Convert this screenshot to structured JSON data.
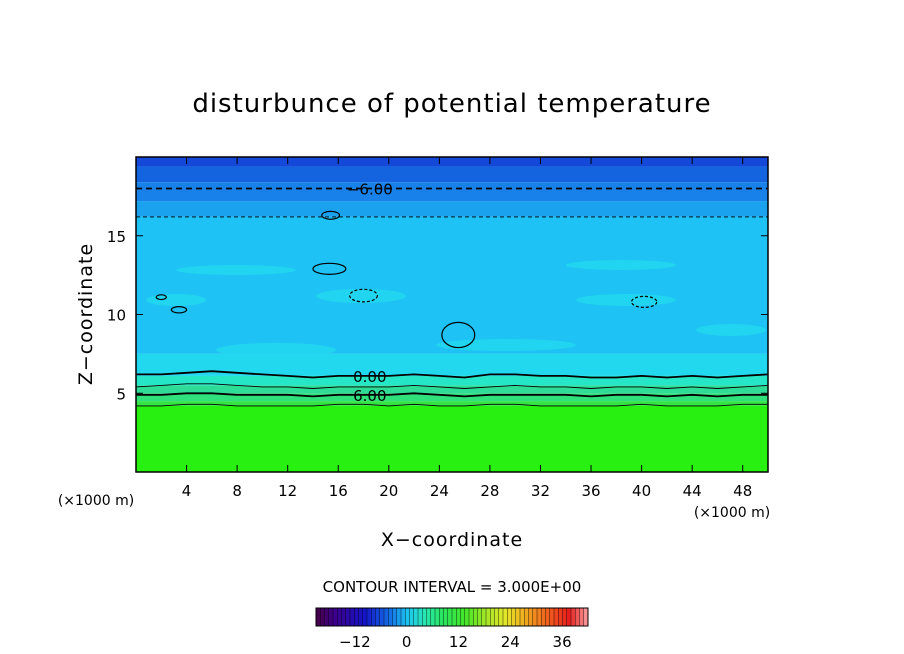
{
  "chart_data": {
    "type": "heatmap",
    "title": "disturbunce of potential temperature",
    "xlabel": "X−coordinate",
    "ylabel": "Z−coordinate",
    "x_unit": "(×1000 m)",
    "y_unit": "(×1000 m)",
    "xlim": [
      0,
      50
    ],
    "ylim": [
      0,
      20
    ],
    "x_ticks": [
      4,
      8,
      12,
      16,
      20,
      24,
      28,
      32,
      36,
      40,
      44,
      48
    ],
    "y_ticks": [
      5,
      10,
      15
    ],
    "contour_interval_label": "CONTOUR INTERVAL = 3.000E+00",
    "colorbar": {
      "range": [
        -21,
        42
      ],
      "ticks": [
        -12,
        0,
        12,
        24,
        36
      ],
      "tick_labels": [
        "−12",
        "0",
        "12",
        "24",
        "36"
      ]
    },
    "bands": [
      {
        "z0": 0,
        "z1": 4.2,
        "value": 10.5,
        "color": "#28f010"
      },
      {
        "z0": 4.2,
        "z1": 4.5,
        "value": 7.5,
        "color": "#34e444"
      },
      {
        "z0": 4.5,
        "z1": 5.0,
        "value": 4.5,
        "color": "#30e07a"
      },
      {
        "z0": 5.0,
        "z1": 5.5,
        "value": 3.5,
        "color": "#2edc98"
      },
      {
        "z0": 5.5,
        "z1": 6.1,
        "value": 1.5,
        "color": "#26e6c8"
      },
      {
        "z0": 6.1,
        "z1": 7.5,
        "value": -0.5,
        "color": "#22d8ee"
      },
      {
        "z0": 7.5,
        "z1": 16.2,
        "value": -2.0,
        "color": "#1ec2f4"
      },
      {
        "z0": 16.2,
        "z1": 17.2,
        "value": -3.5,
        "color": "#1aa2ee"
      },
      {
        "z0": 17.2,
        "z1": 18.4,
        "value": -5.5,
        "color": "#1882ea"
      },
      {
        "z0": 18.4,
        "z1": 19.4,
        "value": -7.0,
        "color": "#1464e0"
      },
      {
        "z0": 19.4,
        "z1": 20,
        "value": -8.0,
        "color": "#1448d8"
      }
    ],
    "contours": [
      {
        "level": 0.0,
        "label": "0.00",
        "style": "solid",
        "bold": true,
        "z": [
          6.2,
          6.2,
          6.3,
          6.4,
          6.3,
          6.2,
          6.1,
          6.0,
          6.1,
          6.1,
          6.1,
          6.2,
          6.1,
          6.0,
          6.2,
          6.2,
          6.1,
          6.1,
          6.0,
          6.0,
          6.1,
          6.0,
          6.1,
          6.0,
          6.1,
          6.2
        ]
      },
      {
        "level": 3.0,
        "label": "",
        "style": "solid",
        "bold": false,
        "z": [
          5.4,
          5.5,
          5.6,
          5.6,
          5.5,
          5.4,
          5.4,
          5.3,
          5.4,
          5.4,
          5.4,
          5.5,
          5.4,
          5.3,
          5.4,
          5.5,
          5.4,
          5.4,
          5.3,
          5.4,
          5.4,
          5.3,
          5.4,
          5.3,
          5.4,
          5.5
        ]
      },
      {
        "level": 6.0,
        "label": "6.00",
        "style": "solid",
        "bold": true,
        "z": [
          4.9,
          4.9,
          5.0,
          5.0,
          4.9,
          4.9,
          4.9,
          4.8,
          4.9,
          4.9,
          4.9,
          5.0,
          4.9,
          4.8,
          4.9,
          4.9,
          4.9,
          4.9,
          4.8,
          4.9,
          4.9,
          4.8,
          4.9,
          4.8,
          4.9,
          4.9
        ]
      },
      {
        "level": 9.0,
        "label": "",
        "style": "solid",
        "bold": false,
        "z": [
          4.2,
          4.2,
          4.3,
          4.3,
          4.2,
          4.2,
          4.2,
          4.2,
          4.3,
          4.3,
          4.2,
          4.3,
          4.2,
          4.2,
          4.3,
          4.3,
          4.2,
          4.2,
          4.2,
          4.2,
          4.3,
          4.2,
          4.2,
          4.2,
          4.3,
          4.3
        ]
      },
      {
        "level": -3.0,
        "label": "",
        "style": "dashed",
        "bold": false,
        "z": [
          16.2,
          16.2,
          16.2,
          16.2,
          16.2,
          16.2,
          16.2,
          16.2,
          16.2,
          16.2,
          16.2,
          16.2,
          16.2,
          16.2,
          16.2,
          16.2,
          16.2,
          16.2,
          16.2,
          16.2,
          16.2,
          16.2,
          16.2,
          16.2,
          16.2,
          16.2
        ]
      },
      {
        "level": -6.0,
        "label": "−6.00",
        "style": "dashed",
        "bold": true,
        "z": [
          18.0,
          18.0,
          18.0,
          18.0,
          18.0,
          18.0,
          18.0,
          18.0,
          18.0,
          18.0,
          18.0,
          18.0,
          18.0,
          18.0,
          18.0,
          18.0,
          18.0,
          18.0,
          18.0,
          18.0,
          18.0,
          18.0,
          18.0,
          18.0,
          18.0,
          18.0
        ]
      }
    ],
    "grid": false
  }
}
